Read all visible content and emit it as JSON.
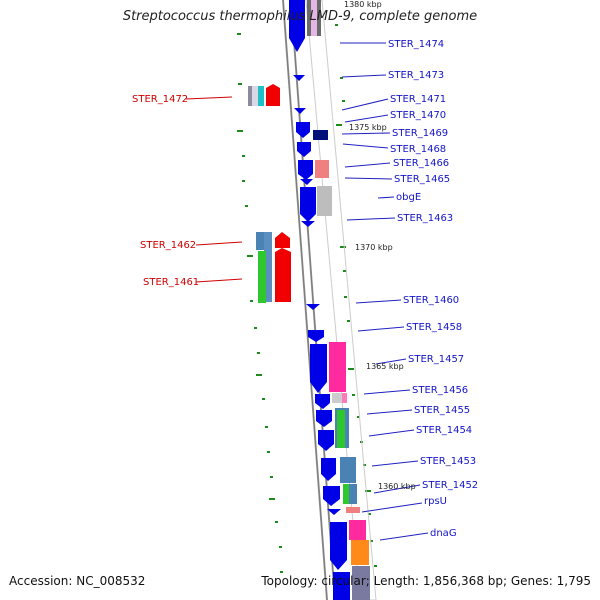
{
  "title": "Streptococcus thermophilus LMD-9, complete genome",
  "footer": {
    "accession": "Accession: NC_008532",
    "summary": "Topology: circular; Length: 1,856,368 bp; Genes: 1,795"
  },
  "colors": {
    "backbone": "#9a9a9a",
    "tick": "#1d8a1d",
    "gene_forward": "#0000e6",
    "label_blue": "#1414c8",
    "label_red": "#d00000"
  },
  "kbp_labels": [
    "1380 kbp",
    "1375 kbp",
    "1370 kbp",
    "1365 kbp",
    "1360 kbp"
  ],
  "right_genes": [
    "STER_1474",
    "STER_1473",
    "STER_1471",
    "STER_1470",
    "STER_1469",
    "STER_1468",
    "STER_1466",
    "STER_1465",
    "obgE",
    "STER_1463",
    "STER_1460",
    "STER_1458",
    "STER_1457",
    "STER_1456",
    "STER_1455",
    "STER_1454",
    "STER_1453",
    "STER_1452",
    "rpsU",
    "dnaG"
  ],
  "left_genes": [
    "STER_1472",
    "STER_1462",
    "STER_1461"
  ]
}
